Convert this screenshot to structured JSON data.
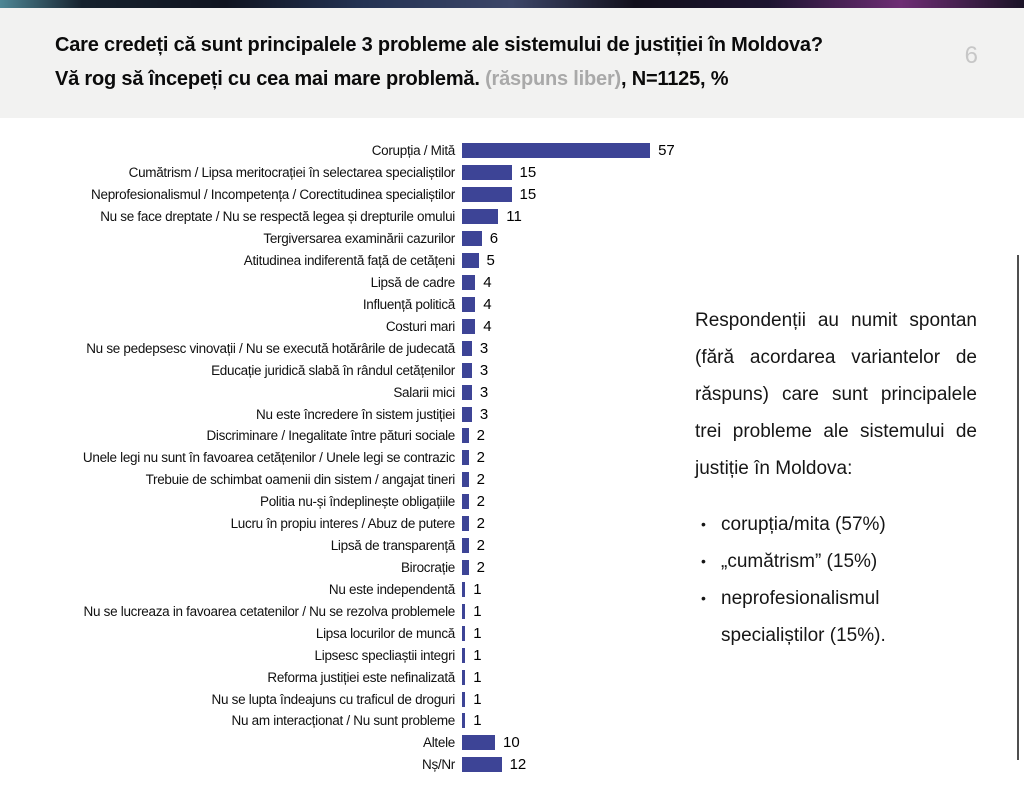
{
  "header": {
    "title_line1": "Care credeți că sunt principalele 3 probleme ale sistemului de justiției în Moldova?",
    "title_line2_main": "Vă rog să începeți cu cea mai mare problemă. ",
    "title_line2_note": "(răspuns liber)",
    "title_line2_suffix": ", N=1125, %",
    "page_number": "6"
  },
  "chart_data": {
    "type": "bar",
    "orientation": "horizontal",
    "categories": [
      "Corupția / Mită",
      "Cumătrism / Lipsa meritocrației în selectarea specialiștilor",
      "Neprofesionalismul / Incompetența / Corectitudinea specialiștilor",
      "Nu se face dreptate / Nu se respectă legea și drepturile omului",
      "Tergiversarea examinării cazurilor",
      "Atitudinea indiferentă față de cetățeni",
      "Lipsă de cadre",
      "Influență politică",
      "Costuri mari",
      "Nu se pedepsesc vinovații / Nu se execută hotărârile de judecată",
      "Educație juridică slabă în rândul cetățenilor",
      "Salarii mici",
      "Nu este încredere în sistem justiției",
      "Discriminare / Inegalitate între pături sociale",
      "Unele legi nu sunt în favoarea cetățenilor / Unele legi se contrazic",
      "Trebuie de schimbat oamenii din sistem / angajat tineri",
      "Politia nu-și îndeplinește obligațiile",
      "Lucru în propiu interes / Abuz de putere",
      "Lipsă de transparență",
      "Birocrație",
      "Nu este independentă",
      "Nu se lucreaza in favoarea cetatenilor / Nu se rezolva problemele",
      "Lipsa locurilor de muncă",
      "Lipsesc specliaștii integri",
      "Reforma justiției este nefinalizată",
      "Nu se lupta îndeajuns cu traficul de droguri",
      "Nu am interacționat / Nu sunt probleme",
      "Altele",
      "Nș/Nr"
    ],
    "values": [
      57,
      15,
      15,
      11,
      6,
      5,
      4,
      4,
      4,
      3,
      3,
      3,
      3,
      2,
      2,
      2,
      2,
      2,
      2,
      2,
      1,
      1,
      1,
      1,
      1,
      1,
      1,
      10,
      12
    ],
    "title": "",
    "xlabel": "",
    "ylabel": "",
    "xlim": [
      0,
      60
    ],
    "grid": false,
    "legend": false,
    "bar_color": "#3d4496",
    "value_label_color": "#000000"
  },
  "side_panel": {
    "paragraph": "Respondenții au numit spontan (fără acordarea variantelor de răspuns) care sunt principalele trei probleme ale sistemului de justiție în Moldova:",
    "bullets": [
      "corupția/mita (57%)",
      "„cumătrism” (15%)",
      "neprofesionalismul specialiștilor (15%)."
    ]
  },
  "colors": {
    "header_background": "#f2f2f1",
    "bar_accent": "#3d4496",
    "page_number_gray": "#c7c7c7",
    "note_gray": "#a9a9a9"
  }
}
